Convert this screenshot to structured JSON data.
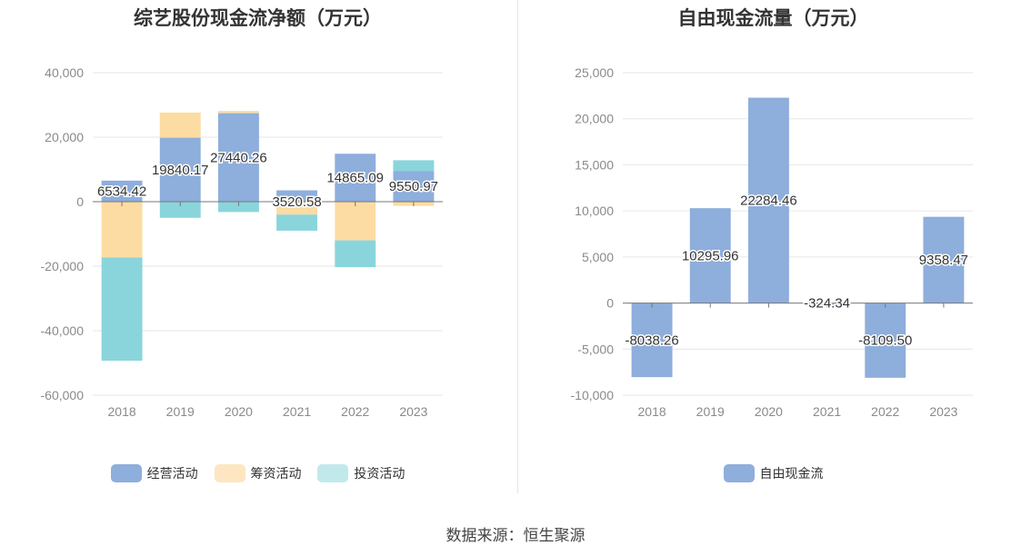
{
  "chart_data": [
    {
      "type": "bar",
      "stacked": true,
      "title": "综艺股份现金流净额（万元）",
      "categories": [
        "2018",
        "2019",
        "2020",
        "2021",
        "2022",
        "2023"
      ],
      "ylim": [
        -60000,
        40000
      ],
      "yticks": [
        40000,
        20000,
        0,
        -20000,
        -40000,
        -60000
      ],
      "ytick_labels": [
        "40,000",
        "20,000",
        "0",
        "-20,000",
        "-40,000",
        "-60,000"
      ],
      "grid": true,
      "legend_position": "bottom",
      "series": [
        {
          "name": "经营活动",
          "color": "#8eaedc",
          "values": [
            6534.42,
            19840.17,
            27440.26,
            3520.58,
            14865.09,
            9550.97
          ]
        },
        {
          "name": "筹资活动",
          "color": "#fcdca2",
          "values": [
            -17300,
            7800,
            700,
            -4000,
            -12000,
            -1300
          ]
        },
        {
          "name": "投资活动",
          "color": "#8ad5dc",
          "values": [
            -32000,
            -5000,
            -3200,
            -5000,
            -8300,
            3300
          ]
        }
      ],
      "data_labels": [
        "6534.42",
        "19840.17",
        "27440.26",
        "3520.58",
        "14865.09",
        "9550.97"
      ]
    },
    {
      "type": "bar",
      "title": "自由现金流量（万元）",
      "categories": [
        "2018",
        "2019",
        "2020",
        "2021",
        "2022",
        "2023"
      ],
      "ylim": [
        -10000,
        25000
      ],
      "yticks": [
        25000,
        20000,
        15000,
        10000,
        5000,
        0,
        -5000,
        -10000
      ],
      "ytick_labels": [
        "25,000",
        "20,000",
        "15,000",
        "10,000",
        "5,000",
        "0",
        "-5,000",
        "-10,000"
      ],
      "grid": true,
      "legend_position": "bottom",
      "series": [
        {
          "name": "自由现金流",
          "color": "#8eaedc",
          "values": [
            -8038.26,
            10295.96,
            22284.46,
            -324.34,
            -8109.5,
            9358.47
          ]
        }
      ],
      "data_labels": [
        "-8038.26",
        "10295.96",
        "22284.46",
        "-324.34",
        "-8109.50",
        "9358.47"
      ]
    }
  ],
  "source_text": "数据来源：恒生聚源"
}
